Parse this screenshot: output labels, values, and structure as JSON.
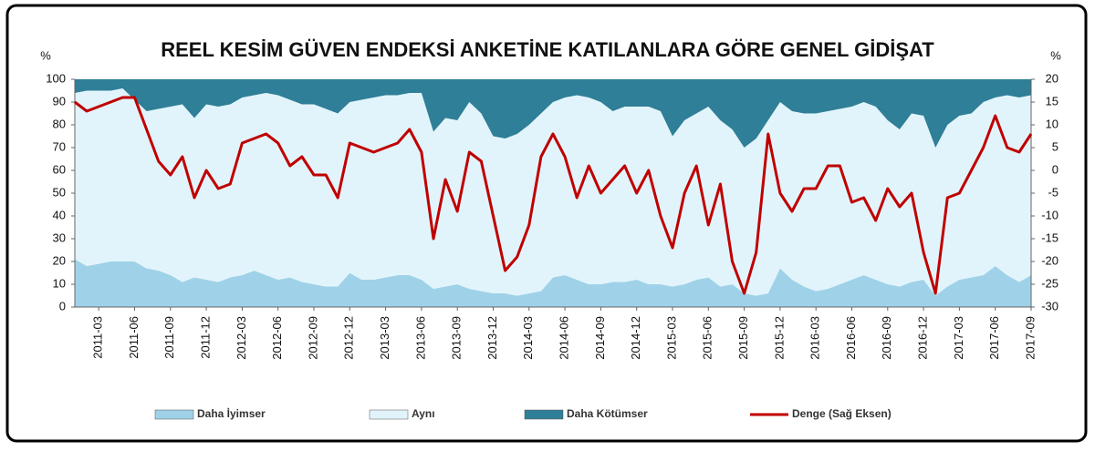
{
  "chart_data": {
    "type": "area",
    "title": "REEL KESİM GÜVEN ENDEKSİ ANKETİNE KATILANLARA GÖRE GENEL GİDİŞAT",
    "y_label": "%",
    "y2_label": "%",
    "categories": [
      null,
      null,
      "2011-03",
      null,
      null,
      "2011-06",
      null,
      null,
      "2011-09",
      null,
      null,
      "2011-12",
      null,
      null,
      "2012-03",
      null,
      null,
      "2012-06",
      null,
      null,
      "2012-09",
      null,
      null,
      "2012-12",
      null,
      null,
      "2013-03",
      null,
      null,
      "2013-06",
      null,
      null,
      "2013-09",
      null,
      null,
      "2013-12",
      null,
      null,
      "2014-03",
      null,
      null,
      "2014-06",
      null,
      null,
      "2014-09",
      null,
      null,
      "2014-12",
      null,
      null,
      "2015-03",
      null,
      null,
      "2015-06",
      null,
      null,
      "2015-09",
      null,
      null,
      "2015-12",
      null,
      null,
      "2016-03",
      null,
      null,
      "2016-06",
      null,
      null,
      "2016-09",
      null,
      null,
      "2016-12",
      null,
      null,
      "2017-03",
      null,
      null,
      "2017-06",
      null,
      null,
      "2017-09"
    ],
    "series": [
      {
        "name": "Daha İyimser",
        "color": "#9fd2e8",
        "values": [
          21,
          18,
          19,
          20,
          20,
          20,
          17,
          16,
          14,
          11,
          13,
          12,
          11,
          13,
          14,
          16,
          14,
          12,
          13,
          11,
          10,
          9,
          9,
          15,
          12,
          12,
          13,
          14,
          14,
          12,
          8,
          9,
          10,
          8,
          7,
          6,
          6,
          5,
          6,
          7,
          13,
          14,
          12,
          10,
          10,
          11,
          11,
          12,
          10,
          10,
          9,
          10,
          12,
          13,
          9,
          10,
          6,
          5,
          6,
          17,
          12,
          9,
          7,
          8,
          10,
          12,
          14,
          12,
          10,
          9,
          11,
          12,
          5,
          9,
          12,
          13,
          14,
          18,
          14,
          11,
          14
        ]
      },
      {
        "name": "Aynı",
        "color": "#e2f4fb",
        "values": [
          73,
          77,
          76,
          75,
          76,
          71,
          69,
          71,
          74,
          78,
          70,
          77,
          77,
          76,
          78,
          77,
          80,
          81,
          78,
          78,
          79,
          78,
          76,
          75,
          79,
          80,
          80,
          79,
          80,
          82,
          69,
          74,
          72,
          82,
          78,
          69,
          68,
          71,
          74,
          78,
          77,
          78,
          81,
          82,
          80,
          75,
          77,
          76,
          78,
          76,
          66,
          72,
          73,
          75,
          73,
          68,
          64,
          69,
          76,
          73,
          74,
          76,
          78,
          78,
          77,
          76,
          76,
          76,
          72,
          69,
          74,
          72,
          65,
          71,
          72,
          72,
          76,
          74,
          79,
          81,
          79
        ]
      },
      {
        "name": "Daha Kötümser",
        "color": "#2e7f97",
        "values": [
          6,
          5,
          5,
          5,
          4,
          9,
          14,
          13,
          12,
          11,
          17,
          11,
          12,
          11,
          8,
          7,
          6,
          7,
          9,
          11,
          11,
          13,
          15,
          10,
          9,
          8,
          7,
          7,
          6,
          6,
          23,
          17,
          18,
          10,
          15,
          25,
          26,
          24,
          20,
          15,
          10,
          8,
          7,
          8,
          10,
          14,
          12,
          12,
          12,
          14,
          25,
          18,
          15,
          12,
          18,
          22,
          30,
          26,
          18,
          10,
          14,
          15,
          15,
          14,
          13,
          12,
          10,
          12,
          18,
          22,
          15,
          16,
          30,
          20,
          16,
          15,
          10,
          8,
          7,
          8,
          7
        ]
      },
      {
        "name": "Denge (Sağ Eksen)",
        "type": "line",
        "axis": "y2",
        "color": "#c00000",
        "values": [
          15,
          13,
          14,
          15,
          16,
          16,
          9,
          2,
          -1,
          3,
          -6,
          0,
          -4,
          -3,
          6,
          7,
          8,
          6,
          1,
          3,
          -1,
          -1,
          -6,
          6,
          5,
          4,
          5,
          6,
          9,
          4,
          -15,
          -2,
          -9,
          4,
          2,
          -10,
          -22,
          -19,
          -12,
          3,
          8,
          3,
          -6,
          1,
          -5,
          -2,
          1,
          -5,
          0,
          -10,
          -17,
          -5,
          1,
          -12,
          -3,
          -20,
          -27,
          -18,
          8,
          -5,
          -9,
          -4,
          -4,
          1,
          1,
          -7,
          -6,
          -11,
          -4,
          -8,
          -5,
          -18,
          -27,
          -6,
          -5,
          0,
          5,
          12,
          5,
          4,
          8
        ]
      }
    ],
    "ylim": [
      0,
      100
    ],
    "yticks": [
      0,
      10,
      20,
      30,
      40,
      50,
      60,
      70,
      80,
      90,
      100
    ],
    "y2lim": [
      -30,
      20
    ],
    "y2ticks": [
      -30,
      -25,
      -20,
      -15,
      -10,
      -5,
      0,
      5,
      10,
      15,
      20
    ],
    "stacked": true
  }
}
